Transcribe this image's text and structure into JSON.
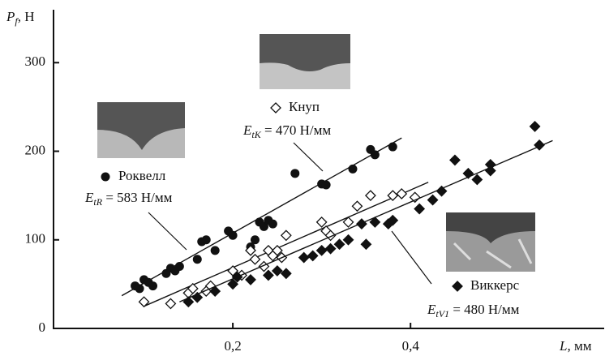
{
  "chart_data": {
    "type": "scatter",
    "ylabel": {
      "symbol": "P",
      "sub": "f",
      "unit": ", Н"
    },
    "xlabel": {
      "symbol": "L",
      "unit": ", мм"
    },
    "xlim": [
      0,
      0.618
    ],
    "ylim": [
      0,
      357
    ],
    "xticks": [
      {
        "value": 0.2,
        "label": "0,2"
      },
      {
        "value": 0.4,
        "label": "0,4"
      }
    ],
    "yticks": [
      0,
      100,
      200,
      300
    ],
    "series": [
      {
        "name": "Роквелл",
        "color": "#111111",
        "marker": "circle",
        "label": {
          "symbol": "E",
          "sub": "tR",
          "text": " = 583 Н/мм"
        },
        "x": [
          0.09,
          0.095,
          0.1,
          0.105,
          0.11,
          0.125,
          0.13,
          0.135,
          0.14,
          0.16,
          0.165,
          0.17,
          0.18,
          0.195,
          0.2,
          0.22,
          0.225,
          0.23,
          0.235,
          0.24,
          0.245,
          0.27,
          0.3,
          0.305,
          0.335,
          0.355,
          0.36,
          0.38
        ],
        "values": [
          48,
          45,
          55,
          52,
          48,
          62,
          68,
          65,
          70,
          78,
          98,
          100,
          88,
          110,
          105,
          92,
          100,
          120,
          115,
          122,
          118,
          175,
          163,
          162,
          180,
          202,
          196,
          205
        ],
        "fit": {
          "x": [
            0.075,
            0.39
          ],
          "y": [
            37,
            215
          ]
        }
      },
      {
        "name": "Кнуп",
        "color": "#111111",
        "marker": "diamond-open",
        "label": {
          "symbol": "E",
          "sub": "tK",
          "text": " = 470 Н/мм"
        },
        "x": [
          0.1,
          0.13,
          0.15,
          0.155,
          0.17,
          0.175,
          0.2,
          0.21,
          0.22,
          0.225,
          0.235,
          0.24,
          0.245,
          0.25,
          0.255,
          0.26,
          0.3,
          0.305,
          0.31,
          0.33,
          0.34,
          0.355,
          0.38,
          0.39,
          0.405
        ],
        "values": [
          30,
          28,
          40,
          45,
          42,
          48,
          65,
          60,
          88,
          78,
          70,
          88,
          82,
          88,
          80,
          105,
          120,
          110,
          105,
          120,
          138,
          150,
          150,
          152,
          148
        ],
        "fit": {
          "x": [
            0.1,
            0.42
          ],
          "y": [
            25,
            165
          ]
        }
      },
      {
        "name": "Виккерс",
        "color": "#111111",
        "marker": "diamond",
        "label": {
          "symbol": "E",
          "sub": "tV1",
          "text": " = 480 Н/мм"
        },
        "x": [
          0.15,
          0.16,
          0.18,
          0.2,
          0.205,
          0.22,
          0.24,
          0.25,
          0.26,
          0.28,
          0.29,
          0.3,
          0.31,
          0.32,
          0.33,
          0.345,
          0.35,
          0.36,
          0.375,
          0.38,
          0.41,
          0.425,
          0.435,
          0.45,
          0.465,
          0.475,
          0.49,
          0.49,
          0.54,
          0.545
        ],
        "values": [
          30,
          35,
          42,
          50,
          58,
          55,
          60,
          65,
          62,
          80,
          82,
          88,
          90,
          95,
          100,
          118,
          95,
          120,
          118,
          122,
          135,
          145,
          155,
          190,
          175,
          168,
          185,
          178,
          228,
          207
        ],
        "fit": {
          "x": [
            0.14,
            0.56
          ],
          "y": [
            30,
            212
          ]
        }
      }
    ]
  }
}
